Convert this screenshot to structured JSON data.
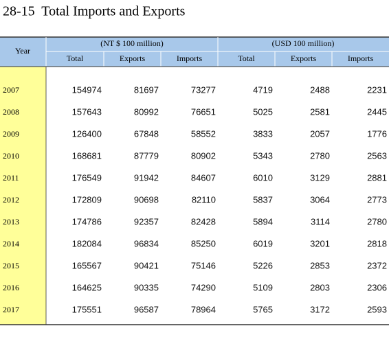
{
  "title": "28-15  Total Imports and Exports",
  "table": {
    "header": {
      "year": "Year",
      "groups": [
        "(NT $ 100 million)",
        "(USD 100 million)"
      ],
      "columns": [
        "Total",
        "Exports",
        "Imports",
        "Total",
        "Exports",
        "Imports"
      ]
    },
    "rows": [
      [
        "2007",
        154974,
        81697,
        73277,
        4719,
        2488,
        2231
      ],
      [
        "2008",
        157643,
        80992,
        76651,
        5025,
        2581,
        2445
      ],
      [
        "2009",
        126400,
        67848,
        58552,
        3833,
        2057,
        1776
      ],
      [
        "2010",
        168681,
        87779,
        80902,
        5343,
        2780,
        2563
      ],
      [
        "2011",
        176549,
        91942,
        84607,
        6010,
        3129,
        2881
      ],
      [
        "2012",
        172809,
        90698,
        82110,
        5837,
        3064,
        2773
      ],
      [
        "2013",
        174786,
        92357,
        82428,
        5894,
        3114,
        2780
      ],
      [
        "2014",
        182084,
        96834,
        85250,
        6019,
        3201,
        2818
      ],
      [
        "2015",
        165567,
        90421,
        75146,
        5226,
        2853,
        2372
      ],
      [
        "2016",
        164625,
        90335,
        74290,
        5109,
        2803,
        2306
      ],
      [
        "2017",
        175551,
        96587,
        78964,
        5765,
        3172,
        2593
      ]
    ]
  }
}
